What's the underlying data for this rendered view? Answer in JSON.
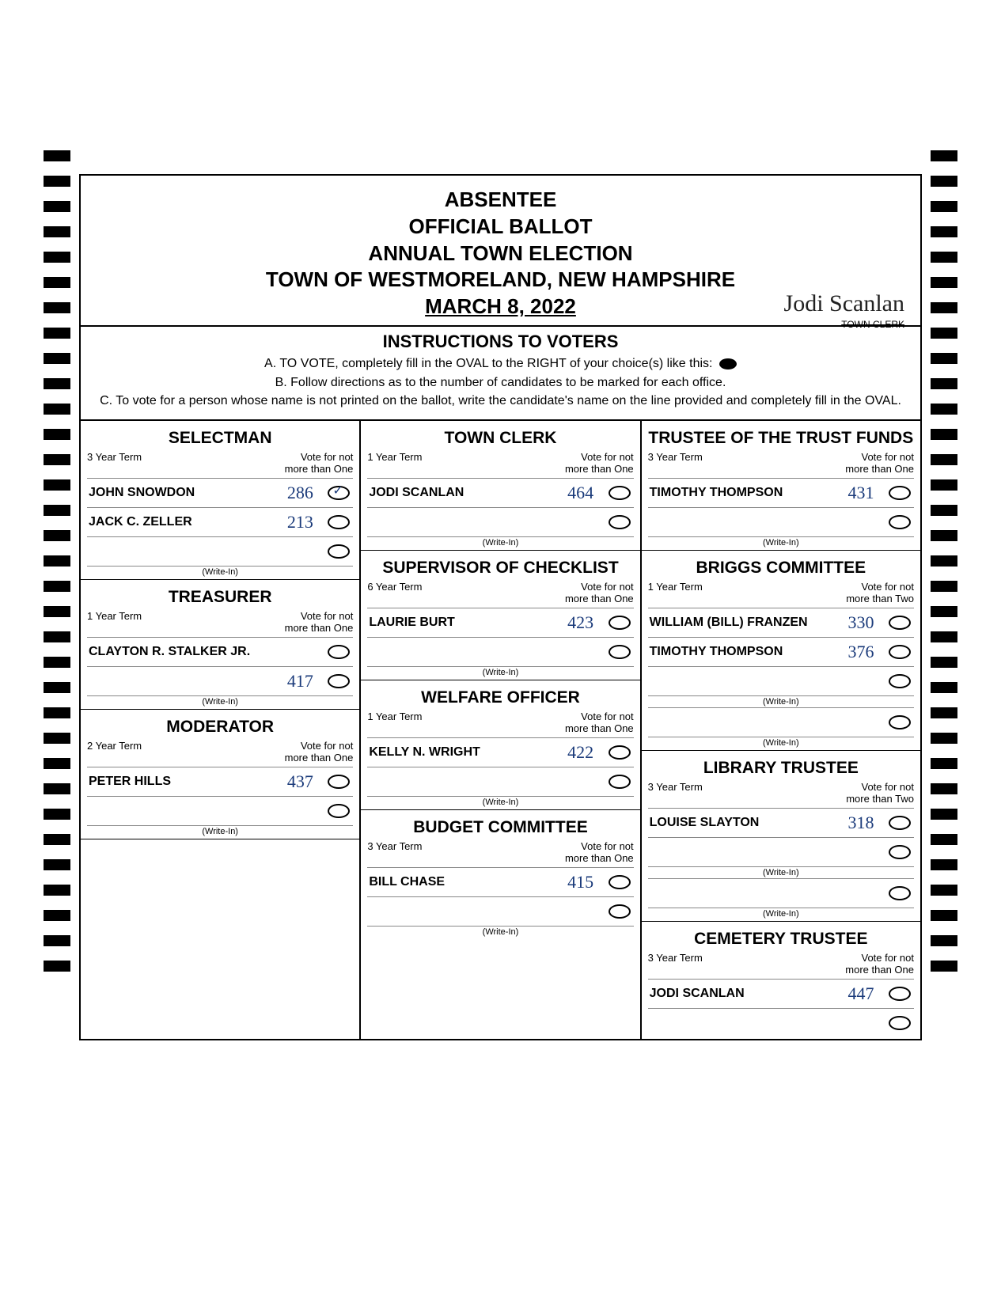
{
  "header": {
    "line1": "ABSENTEE",
    "line2": "OFFICIAL BALLOT",
    "line3": "ANNUAL TOWN ELECTION",
    "line4": "TOWN OF WESTMORELAND, NEW HAMPSHIRE",
    "line5": "MARCH 8, 2022",
    "signature": "Jodi Scanlan",
    "clerk_label": "TOWN CLERK"
  },
  "instructions": {
    "title": "INSTRUCTIONS TO VOTERS",
    "a": "A. TO VOTE, completely fill in the OVAL to the RIGHT of your choice(s) like this:",
    "b": "B. Follow directions as to the number of candidates to be marked for each office.",
    "c": "C. To vote for a person whose name is not printed on the ballot, write the candidate's name on the line provided and completely fill in the OVAL."
  },
  "labels": {
    "vote_for_not": "Vote for not",
    "more_than_one": "more than One",
    "more_than_two": "more than Two",
    "writein": "(Write-In)"
  },
  "col1": {
    "selectman": {
      "title": "SELECTMAN",
      "term": "3 Year Term",
      "c1_name": "JOHN SNOWDON",
      "c1_tally": "286",
      "c2_name": "JACK C. ZELLER",
      "c2_tally": "213"
    },
    "treasurer": {
      "title": "TREASURER",
      "term": "1 Year Term",
      "c1_name": "CLAYTON R. STALKER JR.",
      "w_tally": "417"
    },
    "moderator": {
      "title": "MODERATOR",
      "term": "2 Year Term",
      "c1_name": "PETER HILLS",
      "c1_tally": "437"
    }
  },
  "col2": {
    "townclerk": {
      "title": "TOWN CLERK",
      "term": "1 Year Term",
      "c1_name": "JODI SCANLAN",
      "c1_tally": "464"
    },
    "supervisor": {
      "title": "SUPERVISOR OF CHECKLIST",
      "term": "6 Year Term",
      "c1_name": "LAURIE BURT",
      "c1_tally": "423"
    },
    "welfare": {
      "title": "WELFARE OFFICER",
      "term": "1 Year Term",
      "c1_name": "KELLY N. WRIGHT",
      "c1_tally": "422"
    },
    "budget": {
      "title": "BUDGET COMMITTEE",
      "term": "3 Year Term",
      "c1_name": "BILL CHASE",
      "c1_tally": "415"
    }
  },
  "col3": {
    "trustee": {
      "title": "TRUSTEE OF THE TRUST FUNDS",
      "term": "3 Year Term",
      "c1_name": "TIMOTHY THOMPSON",
      "c1_tally": "431"
    },
    "briggs": {
      "title": "BRIGGS COMMITTEE",
      "term": "1 Year Term",
      "c1_name": "WILLIAM (BILL) FRANZEN",
      "c1_tally": "330",
      "c2_name": "TIMOTHY THOMPSON",
      "c2_tally": "376"
    },
    "library": {
      "title": "LIBRARY TRUSTEE",
      "term": "3 Year Term",
      "c1_name": "LOUISE SLAYTON",
      "c1_tally": "318"
    },
    "cemetery": {
      "title": "CEMETERY TRUSTEE",
      "term": "3 Year Term",
      "c1_name": "JODI SCANLAN",
      "c1_tally": "447"
    }
  }
}
